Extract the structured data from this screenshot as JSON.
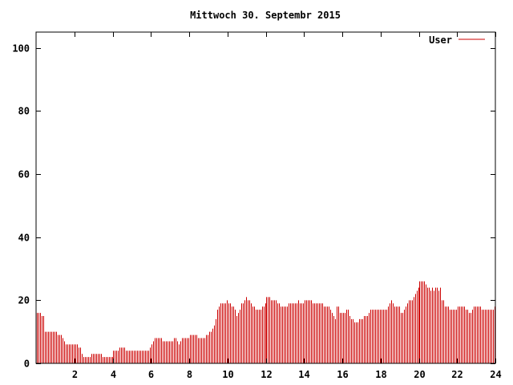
{
  "chart_data": {
    "type": "bar",
    "title": "Mittwoch 30. Septembr 2015",
    "xlabel": "",
    "ylabel": "",
    "xlim": [
      0,
      24
    ],
    "ylim": [
      0,
      105
    ],
    "x_ticks": [
      "2",
      "4",
      "6",
      "8",
      "10",
      "12",
      "14",
      "16",
      "18",
      "20",
      "22",
      "24"
    ],
    "y_ticks": [
      "0",
      "20",
      "40",
      "60",
      "80",
      "100"
    ],
    "legend_position": "top-right",
    "grid": false,
    "series": [
      {
        "name": "User",
        "color": "#cc0000",
        "interval_minutes": 5,
        "values": [
          16,
          16,
          16,
          15,
          15,
          10,
          10,
          10,
          10,
          10,
          10,
          10,
          10,
          9,
          9,
          9,
          8,
          7,
          6,
          6,
          6,
          6,
          6,
          6,
          6,
          6,
          5,
          5,
          3,
          2,
          2,
          2,
          2,
          2,
          3,
          3,
          3,
          3,
          3,
          3,
          3,
          2,
          2,
          2,
          2,
          2,
          2,
          2,
          4,
          4,
          4,
          4,
          5,
          5,
          5,
          5,
          4,
          4,
          4,
          4,
          4,
          4,
          4,
          4,
          4,
          4,
          4,
          4,
          4,
          4,
          4,
          5,
          6,
          7,
          8,
          8,
          8,
          8,
          8,
          7,
          7,
          7,
          7,
          7,
          7,
          7,
          8,
          8,
          7,
          6,
          7,
          8,
          8,
          8,
          8,
          8,
          9,
          9,
          9,
          9,
          9,
          8,
          8,
          8,
          8,
          8,
          9,
          9,
          10,
          10,
          11,
          12,
          14,
          17,
          18,
          19,
          19,
          19,
          19,
          20,
          19,
          19,
          18,
          18,
          17,
          15,
          16,
          17,
          19,
          19,
          20,
          21,
          20,
          20,
          19,
          18,
          18,
          17,
          17,
          17,
          17,
          18,
          18,
          19,
          21,
          21,
          21,
          20,
          20,
          20,
          20,
          19,
          19,
          18,
          18,
          18,
          18,
          18,
          19,
          19,
          19,
          19,
          19,
          19,
          20,
          19,
          19,
          19,
          20,
          20,
          20,
          20,
          20,
          19,
          19,
          19,
          19,
          19,
          19,
          19,
          18,
          18,
          18,
          18,
          17,
          16,
          15,
          14,
          18,
          18,
          16,
          16,
          16,
          16,
          17,
          17,
          15,
          14,
          14,
          13,
          13,
          13,
          14,
          14,
          14,
          15,
          15,
          15,
          16,
          17,
          17,
          17,
          17,
          17,
          17,
          17,
          17,
          17,
          17,
          17,
          18,
          19,
          20,
          19,
          18,
          18,
          18,
          18,
          16,
          16,
          17,
          18,
          19,
          20,
          20,
          20,
          21,
          22,
          23,
          24,
          26,
          26,
          26,
          26,
          25,
          24,
          24,
          23,
          24,
          23,
          24,
          24,
          23,
          24,
          20,
          20,
          18,
          18,
          18,
          17,
          17,
          17,
          17,
          17,
          18,
          18,
          18,
          18,
          18,
          17,
          17,
          16,
          16,
          17,
          18,
          18,
          18,
          18,
          18,
          17,
          17,
          17,
          17,
          17,
          17,
          17,
          17,
          18
        ]
      }
    ]
  }
}
